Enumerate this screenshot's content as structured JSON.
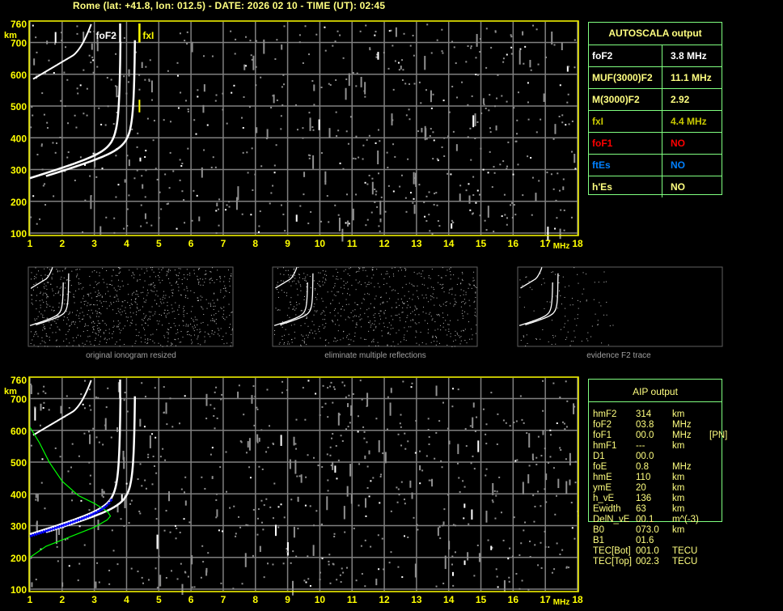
{
  "title": "Rome (lat: +41.8, lon: 012.5) - DATE: 2026 02 10 - TIME (UT): 02:45",
  "colors": {
    "axis": "#ffff00",
    "grid": "#808080",
    "table_border": "#80ff80",
    "text": "#ffff80",
    "o_trace": "#ffffff",
    "profile": "#00ff00",
    "aip_trace": "#0000ff",
    "foF1": "#ff0000",
    "ftEs": "#0080ff"
  },
  "chart_data": [
    {
      "type": "scatter",
      "name_shown": "",
      "xlabel": "MHz",
      "ylabel": "km",
      "xlim": [
        1,
        18
      ],
      "ylim": [
        100,
        760
      ],
      "xticks": [
        "1",
        "2",
        "3",
        "4",
        "5",
        "6",
        "7",
        "8",
        "9",
        "10",
        "11",
        "12",
        "13",
        "14",
        "15",
        "16",
        "17",
        "18"
      ],
      "yticks": [
        "100",
        "200",
        "300",
        "400",
        "500",
        "600",
        "700",
        "760"
      ],
      "grid": true,
      "markers": [
        {
          "label": "foF2",
          "freq": 3.8
        },
        {
          "label": "fxI",
          "freq": 4.4
        }
      ]
    },
    {
      "type": "scatter",
      "xlabel": "MHz",
      "ylabel": "km",
      "xlim": [
        1,
        18
      ],
      "ylim": [
        100,
        760
      ],
      "xticks": [
        "1",
        "2",
        "3",
        "4",
        "5",
        "6",
        "7",
        "8",
        "9",
        "10",
        "11",
        "12",
        "13",
        "14",
        "15",
        "16",
        "17",
        "18"
      ],
      "yticks": [
        "100",
        "200",
        "300",
        "400",
        "500",
        "600",
        "700",
        "760"
      ],
      "grid": true,
      "profile": [
        [
          1.0,
          200
        ],
        [
          1.5,
          235
        ],
        [
          2.0,
          255
        ],
        [
          2.5,
          275
        ],
        [
          3.0,
          295
        ],
        [
          3.4,
          318
        ],
        [
          3.5,
          330
        ],
        [
          3.4,
          345
        ],
        [
          3.0,
          370
        ],
        [
          2.5,
          395
        ],
        [
          2.0,
          440
        ],
        [
          1.6,
          500
        ],
        [
          1.3,
          560
        ],
        [
          1.0,
          610
        ]
      ]
    }
  ],
  "thumbnails": [
    {
      "caption": "original ionogram resized"
    },
    {
      "caption": "eliminate multiple reflections"
    },
    {
      "caption": "evidence F2 trace"
    }
  ],
  "autoscala": {
    "header": "AUTOSCALA output",
    "rows": [
      {
        "label": "foF2",
        "value": "3.8 MHz",
        "color": "#ffffff"
      },
      {
        "label": "MUF(3000)F2",
        "value": "11.1 MHz",
        "color": "#ffff80"
      },
      {
        "label": "M(3000)F2",
        "value": "2.92",
        "color": "#ffff80"
      },
      {
        "label": "fxI",
        "value": "4.4 MHz",
        "color": "#c8c800"
      },
      {
        "label": "foF1",
        "value": "NO",
        "color": "#ff0000"
      },
      {
        "label": "ftEs",
        "value": "NO",
        "color": "#0080ff"
      },
      {
        "label": "h'Es",
        "value": "NO",
        "color": "#ffff80"
      }
    ]
  },
  "aip": {
    "header": "AIP output",
    "rows": [
      [
        "hmF2",
        "314",
        "km",
        ""
      ],
      [
        "foF2",
        "03.8",
        "MHz",
        ""
      ],
      [
        "foF1",
        "00.0",
        "MHz",
        "[PN]"
      ],
      [
        "hmF1",
        "---",
        "km",
        ""
      ],
      [
        "D1",
        "00.0",
        "",
        ""
      ],
      [
        "foE",
        "0.8",
        "MHz",
        ""
      ],
      [
        "hmE",
        "110",
        "km",
        ""
      ],
      [
        "ymE",
        "20",
        "km",
        ""
      ],
      [
        "h_vE",
        "136",
        "km",
        ""
      ],
      [
        "Ewidth",
        "63",
        "km",
        ""
      ],
      [
        "DelN_vE",
        "00.1",
        "m^(-3)",
        ""
      ],
      [
        "B0",
        "073.0",
        "km",
        ""
      ],
      [
        "B1",
        "01.6",
        "",
        ""
      ],
      [
        "TEC[Bot]",
        "001.0",
        "TECU",
        ""
      ],
      [
        "TEC[Top]",
        "002.3",
        "TECU",
        ""
      ]
    ]
  }
}
